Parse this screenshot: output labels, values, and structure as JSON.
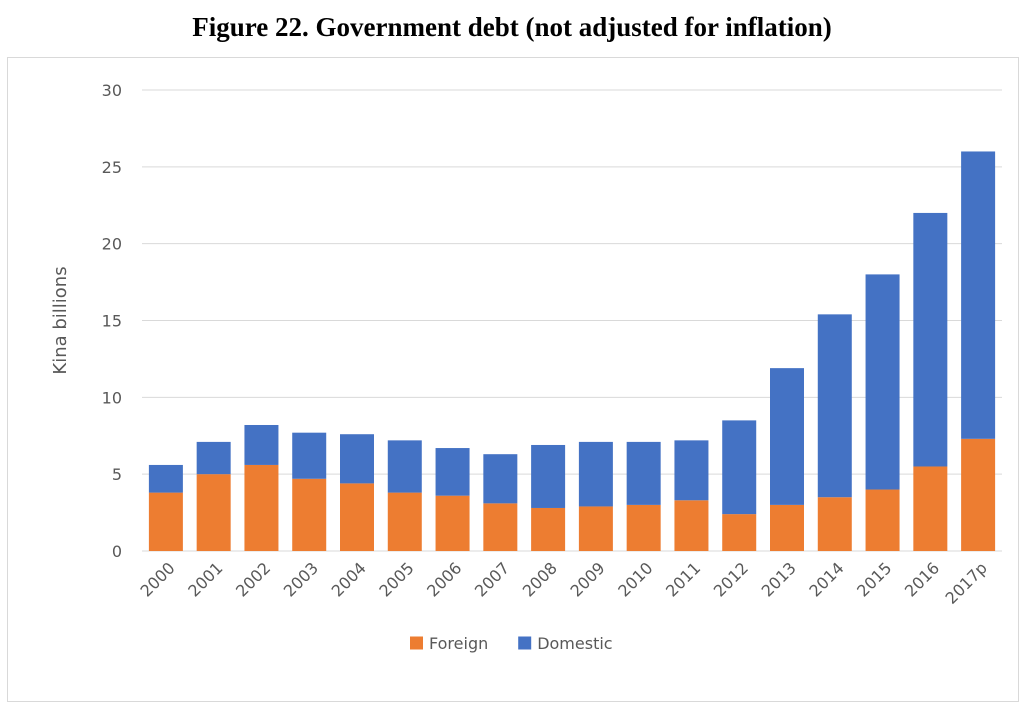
{
  "figure": {
    "title": "Figure 22. Government debt (not adjusted for inflation)"
  },
  "chart_data": {
    "type": "bar",
    "stacked": true,
    "title": "Figure 22. Government debt (not adjusted for inflation)",
    "xlabel": "",
    "ylabel": "Kina billions",
    "ylim": [
      0,
      30
    ],
    "yticks": [
      0,
      5,
      10,
      15,
      20,
      25,
      30
    ],
    "grid": true,
    "legend_position": "bottom",
    "categories": [
      "2000",
      "2001",
      "2002",
      "2003",
      "2004",
      "2005",
      "2006",
      "2007",
      "2008",
      "2009",
      "2010",
      "2011",
      "2012",
      "2013",
      "2014",
      "2015",
      "2016",
      "2017p"
    ],
    "series": [
      {
        "name": "Foreign",
        "color": "#ed7d31",
        "values": [
          3.8,
          5.0,
          5.6,
          4.7,
          4.4,
          3.8,
          3.6,
          3.1,
          2.8,
          2.9,
          3.0,
          3.3,
          2.4,
          3.0,
          3.5,
          4.0,
          5.5,
          7.3
        ]
      },
      {
        "name": "Domestic",
        "color": "#4472c4",
        "values": [
          1.8,
          2.1,
          2.6,
          3.0,
          3.2,
          3.4,
          3.1,
          3.2,
          4.1,
          4.2,
          4.1,
          3.9,
          6.1,
          8.9,
          11.9,
          14.0,
          16.5,
          18.7
        ]
      }
    ]
  }
}
